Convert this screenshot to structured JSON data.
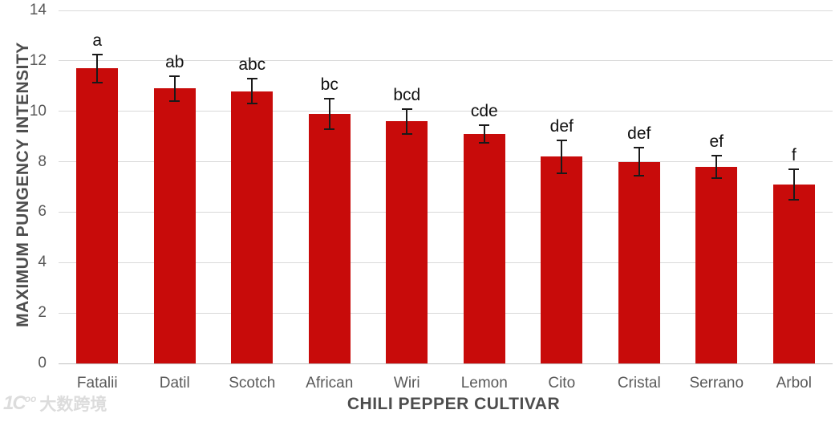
{
  "chart_data": {
    "type": "bar",
    "title": "",
    "xlabel": "CHILI PEPPER CULTIVAR",
    "ylabel": "MAXIMUM PUNGENCY INTENSITY",
    "categories": [
      "Fatalii",
      "Datil",
      "Scotch",
      "African",
      "Wiri",
      "Lemon",
      "Cito",
      "Cristal",
      "Serrano",
      "Arbol"
    ],
    "values": [
      11.7,
      10.9,
      10.8,
      9.9,
      9.6,
      9.1,
      8.2,
      8.0,
      7.8,
      7.1
    ],
    "error_bars": [
      0.55,
      0.5,
      0.5,
      0.6,
      0.5,
      0.35,
      0.65,
      0.55,
      0.45,
      0.6
    ],
    "sig_letters": [
      "a",
      "ab",
      "abc",
      "bc",
      "bcd",
      "cde",
      "def",
      "def",
      "ef",
      "f"
    ],
    "ylim": [
      0,
      14
    ],
    "yticks": [
      0,
      2,
      4,
      6,
      8,
      10,
      12,
      14
    ],
    "grid": true,
    "legend": "none",
    "colors": {
      "bar": "#c80b0a",
      "gridline": "#d9d9d9",
      "axis_line": "#bfbfbf",
      "tick_label": "#595959",
      "axis_title": "#4d4d4d",
      "error_bar": "#1a1a1a"
    }
  },
  "watermark": {
    "logo": "1C",
    "logo_sup": "oo",
    "text": "大数跨境"
  }
}
